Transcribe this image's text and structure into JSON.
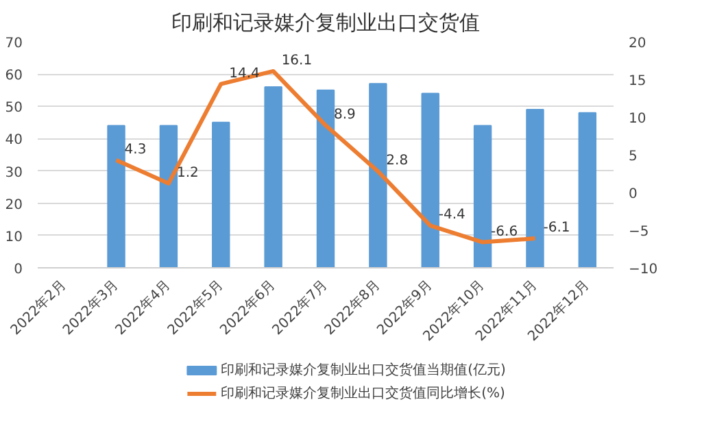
{
  "chart_data": {
    "type": "bar",
    "title": "印刷和记录媒介复制业出口交货值",
    "categories": [
      "2022年2月",
      "2022年3月",
      "2022年4月",
      "2022年5月",
      "2022年6月",
      "2022年7月",
      "2022年8月",
      "2022年9月",
      "2022年10月",
      "2022年11月",
      "2022年12月"
    ],
    "series": [
      {
        "name": "印刷和记录媒介复制业出口交货值当期值(亿元)",
        "color": "#5b9bd5",
        "values": [
          null,
          44,
          44,
          45,
          56,
          55,
          57,
          54,
          44,
          49,
          48
        ]
      },
      {
        "name": "印刷和记录媒介复制业出口交货值同比增长(%)",
        "type": "line",
        "axis": "y2",
        "color": "#ed7d31",
        "values": [
          null,
          4.3,
          1.2,
          14.4,
          16.1,
          8.9,
          2.8,
          -4.4,
          -6.6,
          -6.1,
          null
        ],
        "value_labels": [
          null,
          "4.3",
          "1.2",
          "14.4",
          "16.1",
          "8.9",
          "2.8",
          "-4.4",
          "-6.6",
          "-6.1",
          null
        ]
      }
    ],
    "ylim": [
      0,
      70
    ],
    "yticks": [
      0,
      10,
      20,
      30,
      40,
      50,
      60,
      70
    ],
    "y2lim": [
      -10,
      20
    ],
    "y2ticks": [
      -10,
      -5,
      0,
      5,
      10,
      15,
      20
    ],
    "grid": "y",
    "legend": "bottom",
    "marker": "none",
    "line_style": "solid"
  }
}
